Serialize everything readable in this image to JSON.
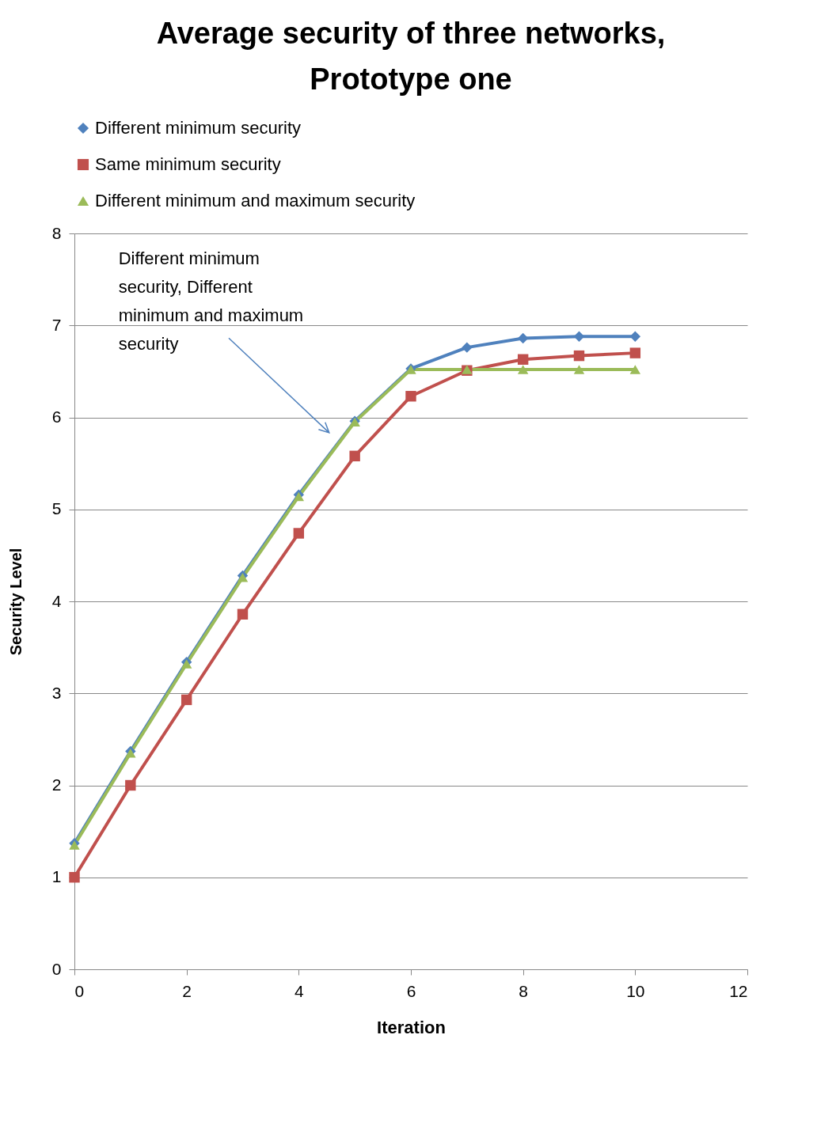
{
  "chart_data": {
    "type": "line",
    "title": "Average security of three networks, Prototype one",
    "xlabel": "Iteration",
    "ylabel": "Security Level",
    "x": [
      0,
      1,
      2,
      3,
      4,
      5,
      6,
      7,
      8,
      9,
      10
    ],
    "series": [
      {
        "name": "Different minimum security",
        "color": "#4f81bd",
        "marker": "diamond",
        "values": [
          1.37,
          2.37,
          3.34,
          4.28,
          5.16,
          5.96,
          6.53,
          6.76,
          6.86,
          6.88,
          6.88
        ]
      },
      {
        "name": "Same minimum security",
        "color": "#c0504d",
        "marker": "square",
        "values": [
          1.0,
          2.0,
          2.93,
          3.86,
          4.74,
          5.58,
          6.23,
          6.51,
          6.63,
          6.67,
          6.7
        ]
      },
      {
        "name": "Different minimum and maximum security",
        "color": "#9bbb59",
        "marker": "triangle",
        "values": [
          1.35,
          2.35,
          3.32,
          4.26,
          5.14,
          5.95,
          6.52,
          6.52,
          6.52,
          6.52,
          6.52
        ]
      }
    ],
    "xlim": [
      0,
      12
    ],
    "xticks": [
      0,
      2,
      4,
      6,
      8,
      10,
      12
    ],
    "ylim": [
      0,
      8
    ],
    "yticks": [
      0,
      1,
      2,
      3,
      4,
      5,
      6,
      7,
      8
    ],
    "grid": "y",
    "legend": "top",
    "line_style": "solid",
    "annotations": [
      "Different minimum security, Different minimum and maximum security"
    ]
  }
}
